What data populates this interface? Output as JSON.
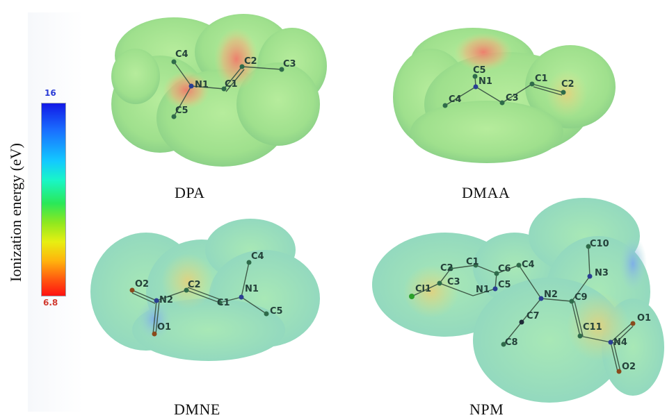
{
  "scale": {
    "title": "Ionization energy (eV)",
    "max_label": "16",
    "min_label": "6.8",
    "colors": [
      "#1219e6",
      "#13c9ff",
      "#2ae858",
      "#e7ef12",
      "#ff1111"
    ]
  },
  "molecules": [
    {
      "name": "DPA",
      "atoms": [
        "C4",
        "N1",
        "C1",
        "C2",
        "C3",
        "C5"
      ]
    },
    {
      "name": "DMAA",
      "atoms": [
        "C5",
        "N1",
        "C1",
        "C2",
        "C4",
        "C3"
      ]
    },
    {
      "name": "DMNE",
      "atoms": [
        "O2",
        "N2",
        "C2",
        "C1",
        "N1",
        "C4",
        "C5",
        "O1"
      ]
    },
    {
      "name": "NPM",
      "atoms": [
        "C10",
        "N3",
        "C2",
        "C1",
        "C6",
        "C4",
        "Cl1",
        "C3",
        "N1",
        "C5",
        "N2",
        "C9",
        "C7",
        "C11",
        "C8",
        "O1",
        "N4",
        "O2"
      ]
    }
  ]
}
